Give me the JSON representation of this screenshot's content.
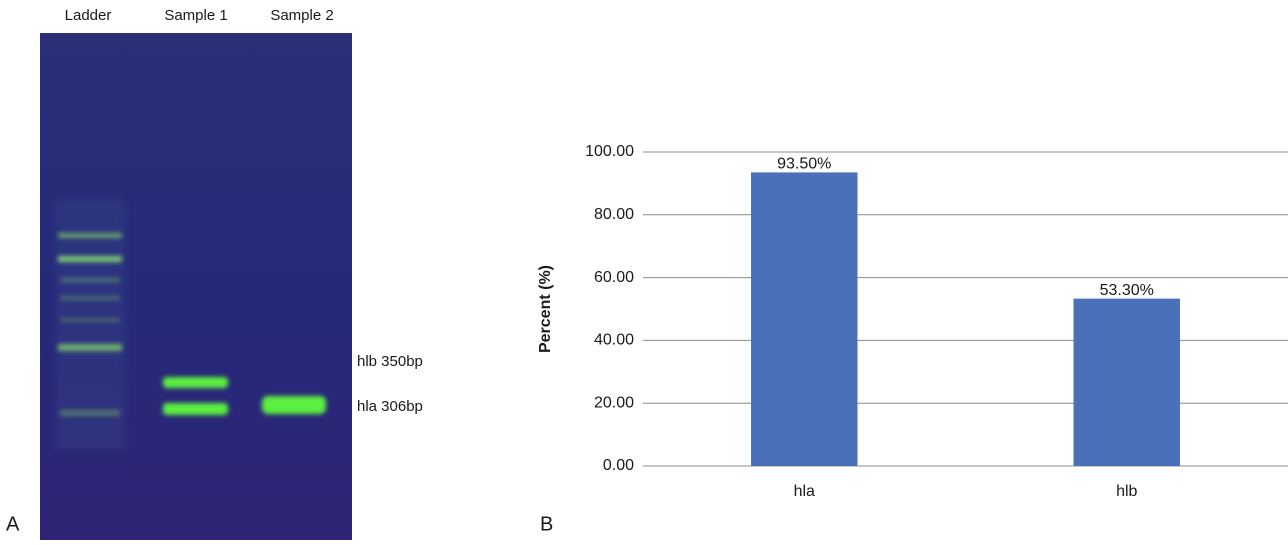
{
  "panels": [
    "A",
    "B"
  ],
  "gel": {
    "lanes": [
      "Ladder",
      "Sample 1",
      "Sample 2"
    ],
    "bands": [
      "hlb 350bp",
      "hla 306bp"
    ]
  },
  "chart_data": {
    "type": "bar",
    "y_label": "Percent (%)",
    "categories": [
      "hla",
      "hlb"
    ],
    "values": [
      93.5,
      53.3
    ],
    "value_labels": [
      "93.50%",
      "53.30%"
    ],
    "color": "#4a70b9",
    "ylim": [
      0,
      100
    ],
    "yticks": [
      {
        "value": 0,
        "label": "0.00"
      },
      {
        "value": 20,
        "label": "20.00"
      },
      {
        "value": 40,
        "label": "40.00"
      },
      {
        "value": 60,
        "label": "60.00"
      },
      {
        "value": 80,
        "label": "80.00"
      },
      {
        "value": 100,
        "label": "100.00"
      }
    ],
    "grid": true
  }
}
